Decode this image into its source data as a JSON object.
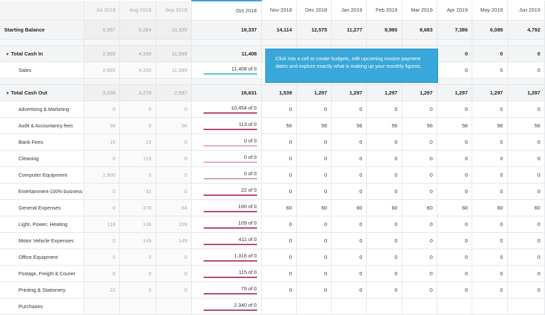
{
  "months": [
    "Jul 2018",
    "Aug 2018",
    "Sep 2018",
    "Oct 2018",
    "Nov 2018",
    "Dec 2018",
    "Jan 2019",
    "Feb 2019",
    "Mar 2019",
    "Apr 2019",
    "May 2019",
    "Jun 2019"
  ],
  "starting_balance": {
    "label": "Starting Balance",
    "values": [
      "9,957",
      "9,284",
      "10,335",
      "19,337",
      "14,114",
      "12,575",
      "11,277",
      "9,980",
      "8,683",
      "7,386",
      "6,089",
      "4,792"
    ]
  },
  "cash_in": {
    "label": "Total Cash In",
    "values": [
      "2,665",
      "4,330",
      "11,589",
      "11,408",
      "",
      "",
      "",
      "",
      "",
      "0",
      "0",
      "0"
    ],
    "rows": [
      {
        "label": "Sales",
        "values": [
          "2,665",
          "4,330",
          "11,589",
          "11,408 of 0",
          "",
          "",
          "",
          "",
          "",
          "0",
          "0",
          "0"
        ]
      }
    ]
  },
  "cash_out": {
    "label": "Total Cash Out",
    "values": [
      "3,338",
      "3,279",
      "2,587",
      "16,631",
      "1,539",
      "1,297",
      "1,297",
      "1,297",
      "1,297",
      "1,297",
      "1,297",
      "1,297"
    ],
    "rows": [
      {
        "label": "Advertising & Marketing",
        "values": [
          "0",
          "0",
          "0",
          "10,454 of 0",
          "0",
          "0",
          "0",
          "0",
          "0",
          "0",
          "0",
          "0"
        ]
      },
      {
        "label": "Audit & Accountancy fees",
        "values": [
          "56",
          "0",
          "56",
          "113 of 0",
          "56",
          "56",
          "56",
          "56",
          "56",
          "56",
          "56",
          "56"
        ]
      },
      {
        "label": "Bank Fees",
        "values": [
          "15",
          "15",
          "0",
          "0 of 0",
          "0",
          "0",
          "0",
          "0",
          "0",
          "0",
          "0",
          "0"
        ]
      },
      {
        "label": "Cleaning",
        "values": [
          "0",
          "119",
          "0",
          "0 of 0",
          "0",
          "0",
          "0",
          "0",
          "0",
          "0",
          "0",
          "0"
        ]
      },
      {
        "label": "Computer Equipment",
        "values": [
          "1,900",
          "0",
          "0",
          "0 of 0",
          "0",
          "0",
          "0",
          "0",
          "0",
          "0",
          "0",
          "0"
        ]
      },
      {
        "label": "Entertainment-100% business",
        "values": [
          "0",
          "32",
          "0",
          "22 of 0",
          "0",
          "0",
          "0",
          "0",
          "0",
          "0",
          "0",
          "0"
        ]
      },
      {
        "label": "General Expenses",
        "values": [
          "0",
          "378",
          "94",
          "190 of 0",
          "60",
          "60",
          "60",
          "60",
          "60",
          "60",
          "60",
          "60"
        ]
      },
      {
        "label": "Light, Power, Heating",
        "values": [
          "119",
          "136",
          "109",
          "109 of 0",
          "0",
          "0",
          "0",
          "0",
          "0",
          "0",
          "0",
          "0"
        ]
      },
      {
        "label": "Motor Vehicle Expenses",
        "values": [
          "0",
          "149",
          "149",
          "411 of 0",
          "0",
          "0",
          "0",
          "0",
          "0",
          "0",
          "0",
          "0"
        ]
      },
      {
        "label": "Office Equipment",
        "values": [
          "0",
          "0",
          "0",
          "1,316 of 0",
          "0",
          "0",
          "0",
          "0",
          "0",
          "0",
          "0",
          "0"
        ]
      },
      {
        "label": "Postage, Freight & Courier",
        "values": [
          "0",
          "0",
          "0",
          "115 of 0",
          "0",
          "0",
          "0",
          "0",
          "0",
          "0",
          "0",
          "0"
        ]
      },
      {
        "label": "Printing & Stationery",
        "values": [
          "22",
          "0",
          "0",
          "79 of 0",
          "0",
          "0",
          "0",
          "0",
          "0",
          "0",
          "0",
          "0"
        ]
      },
      {
        "label": "Purchases",
        "values": [
          "",
          "",
          "",
          "2,340 of 0",
          "",
          "",
          "",
          "",
          "",
          "",
          "",
          ""
        ]
      }
    ]
  },
  "tooltip": {
    "text": "Click into a cell to create budgets, edit upcoming invoice payment dates and explore exactly what is making up your monthly figures."
  },
  "colors": {
    "accent": "#38a7da",
    "budget_bar": "#b8416e",
    "budget_teal": "#4cc6c0"
  }
}
